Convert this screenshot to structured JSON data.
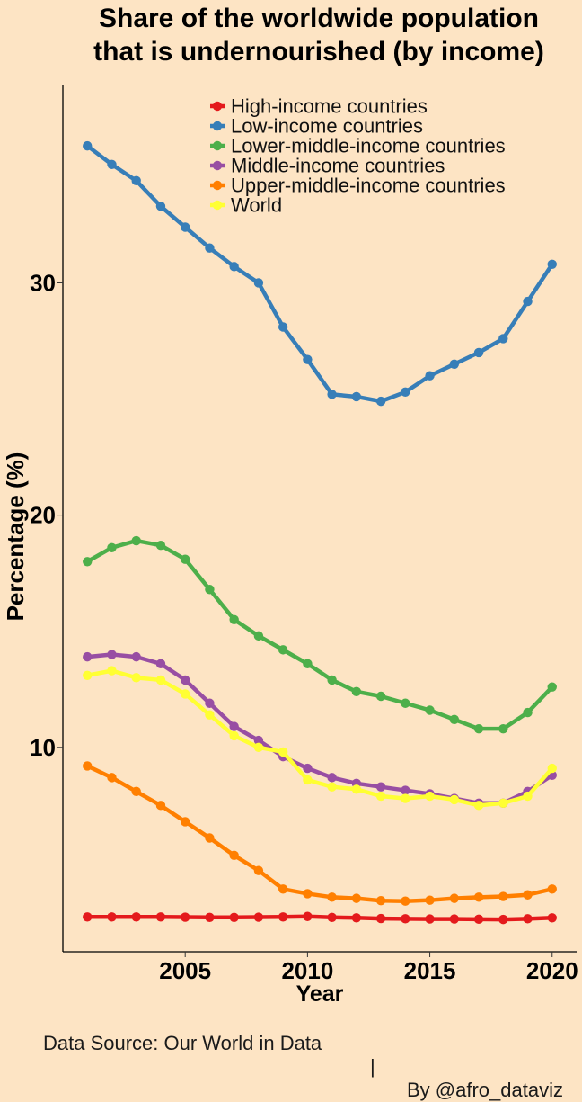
{
  "chart_data": {
    "type": "line",
    "title": [
      "Share of the worldwide population",
      "that is undernourished (by income)"
    ],
    "xlabel": "Year",
    "ylabel": "Percentage (%)",
    "xlim": [
      2000,
      2021
    ],
    "ylim": [
      1.2,
      38.5
    ],
    "x_ticks": [
      2005,
      2010,
      2015,
      2020
    ],
    "y_ticks": [
      10,
      20,
      30
    ],
    "grid": false,
    "legend_position": "top",
    "x": [
      2001,
      2002,
      2003,
      2004,
      2005,
      2006,
      2007,
      2008,
      2009,
      2010,
      2011,
      2012,
      2013,
      2014,
      2015,
      2016,
      2017,
      2018,
      2019,
      2020
    ],
    "series": [
      {
        "name": "High-income countries",
        "color": "#e41a1c",
        "values": [
          2.7,
          2.7,
          2.7,
          2.7,
          2.69,
          2.68,
          2.68,
          2.69,
          2.7,
          2.72,
          2.68,
          2.66,
          2.63,
          2.62,
          2.61,
          2.61,
          2.6,
          2.59,
          2.62,
          2.66
        ]
      },
      {
        "name": "Low-income countries",
        "color": "#377eb8",
        "values": [
          35.9,
          35.1,
          34.4,
          33.3,
          32.4,
          31.5,
          30.7,
          30.0,
          28.1,
          26.7,
          25.2,
          25.1,
          24.9,
          25.3,
          26.0,
          26.5,
          27.0,
          27.6,
          29.2,
          30.8
        ]
      },
      {
        "name": "Lower-middle-income countries",
        "color": "#4daf4a",
        "values": [
          18.0,
          18.6,
          18.9,
          18.7,
          18.1,
          16.8,
          15.5,
          14.8,
          14.2,
          13.6,
          12.9,
          12.4,
          12.2,
          11.9,
          11.6,
          11.2,
          10.8,
          10.8,
          11.5,
          12.6
        ]
      },
      {
        "name": "Middle-income countries",
        "color": "#984ea3",
        "values": [
          13.9,
          14.0,
          13.9,
          13.6,
          12.9,
          11.9,
          10.9,
          10.3,
          9.6,
          9.1,
          8.7,
          8.45,
          8.3,
          8.15,
          8.0,
          7.8,
          7.6,
          7.6,
          8.1,
          8.8
        ]
      },
      {
        "name": "Upper-middle-income countries",
        "color": "#ff7f00",
        "values": [
          9.2,
          8.7,
          8.1,
          7.5,
          6.8,
          6.1,
          5.35,
          4.7,
          3.9,
          3.7,
          3.55,
          3.5,
          3.4,
          3.38,
          3.42,
          3.5,
          3.55,
          3.58,
          3.65,
          3.9
        ]
      },
      {
        "name": "World",
        "color": "#ffff33",
        "values": [
          13.1,
          13.3,
          13.0,
          12.9,
          12.3,
          11.4,
          10.5,
          10.0,
          9.8,
          8.6,
          8.3,
          8.2,
          7.9,
          7.8,
          7.9,
          7.75,
          7.5,
          7.6,
          7.9,
          9.1
        ]
      }
    ]
  },
  "caption": {
    "source": "Data Source: Our World in Data",
    "separator": "|",
    "author": "By @afro_dataviz"
  },
  "colors": {
    "background": "#fde4c4"
  }
}
